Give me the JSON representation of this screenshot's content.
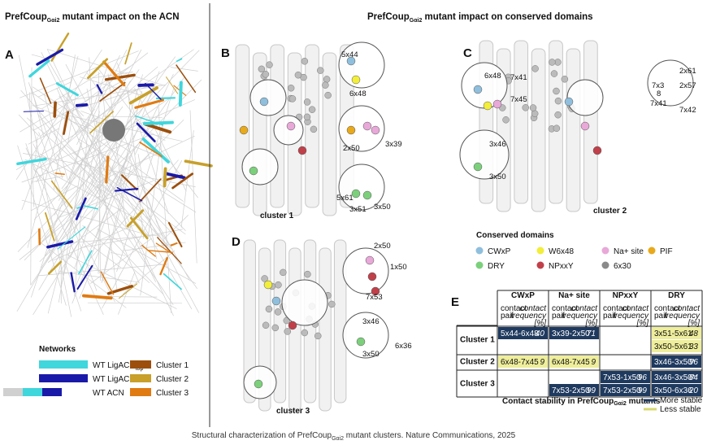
{
  "left_title": {
    "prefix": "PrefCoup",
    "subscript": "Gαi2",
    "suffix": " mutant impact on the ACN"
  },
  "right_title": {
    "prefix": "PrefCoup",
    "subscript": "Gαi2",
    "suffix": " mutant impact on conserved domains"
  },
  "panels": {
    "A": "A",
    "B": "B",
    "C": "C",
    "D": "D",
    "E": "E"
  },
  "cluster_labels": [
    "cluster 1",
    "cluster 2",
    "cluster 3"
  ],
  "residues": {
    "B": [
      "5x44",
      "6x48",
      "2x50",
      "3x39",
      "5x61",
      "3x51",
      "3x50"
    ],
    "C": [
      "6x48",
      "7x41",
      "7x45",
      "2x61",
      "7x3",
      "8",
      "2x57",
      "7x41",
      "7x42",
      "3x46",
      "3x50"
    ],
    "D": [
      "2x50",
      "1x50",
      "7x53",
      "3x46",
      "6x36",
      "3x50"
    ]
  },
  "networks_legend": {
    "title": "Networks",
    "items": [
      {
        "label": "WT LigACN",
        "subscript": "top",
        "color": "#3fd6dc"
      },
      {
        "label": "WT LigACN",
        "color": "#1a1aa8"
      },
      {
        "label": "WT ACN",
        "colors": [
          "#d0d0d0",
          "#3fd6dc",
          "#1a1aa8"
        ]
      },
      {
        "label": "Cluster 1",
        "color": "#9c4f0c"
      },
      {
        "label": "Cluster 2",
        "color": "#c8a02a"
      },
      {
        "label": "Cluster 3",
        "color": "#e07b12"
      }
    ]
  },
  "domains_legend": {
    "title": "Conserved domains",
    "items": [
      {
        "label": "CWxP",
        "color": "#8fbfdc"
      },
      {
        "label": "W6x48",
        "color": "#f2ee3a"
      },
      {
        "label": "Na+ site",
        "color": "#e8a8d8"
      },
      {
        "label": "PIF",
        "color": "#e8a91a"
      },
      {
        "label": "DRY",
        "color": "#7cd07c"
      },
      {
        "label": "NPxxY",
        "color": "#c0404a"
      },
      {
        "label": "6x30",
        "color": "#8a8a8a"
      }
    ]
  },
  "table": {
    "columns": [
      "CWxP",
      "Na+ site",
      "NPxxY",
      "DRY"
    ],
    "subheader": {
      "pair": "contact pair",
      "frequency": "contact frequency [%]"
    },
    "rows": [
      {
        "cluster": "Cluster 1",
        "subrows": [
          [
            {
              "pair": "5x44-6x48",
              "frequency": 40,
              "color": "#1f3a5f"
            },
            {
              "pair": "3x39-2x50",
              "frequency": 71,
              "color": "#1f3a5f"
            },
            null,
            {
              "pair": "3x51-5x61",
              "frequency": 48,
              "color": "#eeee9c"
            }
          ],
          [
            null,
            null,
            null,
            {
              "pair": "3x50-5x61",
              "frequency": 33,
              "color": "#eeee9c"
            }
          ]
        ]
      },
      {
        "cluster": "Cluster 2",
        "subrows": [
          [
            {
              "pair": "6x48-7x45",
              "frequency": 9,
              "color": "#eeee9c"
            },
            {
              "pair": "6x48-7x45",
              "frequency": 9,
              "color": "#eeee9c"
            },
            null,
            {
              "pair": "3x46-3x50*",
              "frequency": 96,
              "color": "#1f3a5f"
            }
          ]
        ]
      },
      {
        "cluster": "Cluster 3",
        "subrows": [
          [
            null,
            null,
            {
              "pair": "7x53-1x50",
              "frequency": 96,
              "color": "#1f3a5f"
            },
            {
              "pair": "3x46-3x50*",
              "frequency": 64,
              "color": "#1f3a5f"
            }
          ],
          [
            null,
            {
              "pair": "7x53-2x50",
              "frequency": 99,
              "color": "#1f3a5f"
            },
            {
              "pair": "7x53-2x50",
              "frequency": 99,
              "color": "#1f3a5f"
            },
            {
              "pair": "3x50-6x36",
              "frequency": 20,
              "color": "#1f3a5f"
            }
          ]
        ]
      }
    ],
    "caption": {
      "prefix": "Contact stability in PrefCoup",
      "subscript": "Gαi2",
      "suffix": " mutants"
    },
    "stability_legend": [
      {
        "label": "More stable",
        "color": "#1f3a5f"
      },
      {
        "label": "Less stable",
        "color": "#d8d870"
      }
    ]
  },
  "footer": {
    "prefix": "Structural characterization of PrefCoup",
    "subscript": "Gαi2",
    "suffix": " mutant clusters. Nature Communications, 2025"
  }
}
